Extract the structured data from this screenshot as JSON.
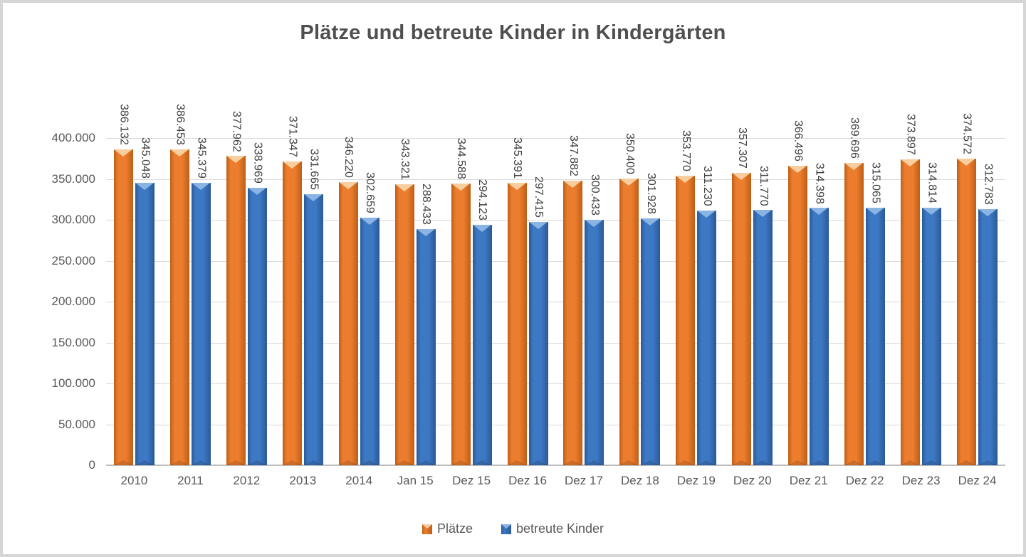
{
  "chart_data": {
    "type": "bar",
    "title": "Plätze und betreute Kinder in Kindergärten",
    "categories": [
      "2010",
      "2011",
      "2012",
      "2013",
      "2014",
      "Jan 15",
      "Dez 15",
      "Dez 16",
      "Dez 17",
      "Dez 18",
      "Dez 19",
      "Dez 20",
      "Dez 21",
      "Dez 22",
      "Dez 23",
      "Dez 24"
    ],
    "series": [
      {
        "name": "Plätze",
        "color": "#ED7D2E",
        "color_dark": "#BD5F16",
        "color_light": "#F8CE9E",
        "values": [
          386132,
          386453,
          377962,
          371347,
          346220,
          343321,
          344588,
          345391,
          347882,
          350400,
          353770,
          357307,
          366496,
          369696,
          373897,
          374572
        ],
        "data_labels": [
          "386.132",
          "386.453",
          "377.962",
          "371.347",
          "346.220",
          "343.321",
          "344.588",
          "345.391",
          "347.882",
          "350.400",
          "353.770",
          "357.307",
          "366.496",
          "369.696",
          "373.897",
          "374.572"
        ]
      },
      {
        "name": "betreute Kinder",
        "color": "#3D78C4",
        "color_dark": "#295A96",
        "color_light": "#8AB4E4",
        "values": [
          345048,
          345379,
          338969,
          331665,
          302659,
          288433,
          294123,
          297415,
          300433,
          301928,
          311230,
          311770,
          314398,
          315065,
          314814,
          312783
        ],
        "data_labels": [
          "345.048",
          "345.379",
          "338.969",
          "331.665",
          "302.659",
          "288.433",
          "294.123",
          "297.415",
          "300.433",
          "301.928",
          "311.230",
          "311.770",
          "314.398",
          "315.065",
          "314.814",
          "312.783"
        ]
      }
    ],
    "y_axis": {
      "min": 0,
      "max": 400000,
      "step": 50000,
      "tick_labels": [
        "0",
        "50.000",
        "100.000",
        "150.000",
        "200.000",
        "250.000",
        "300.000",
        "350.000",
        "400.000"
      ]
    },
    "grid": true,
    "legend_position": "bottom",
    "data_label_style": "rotated-90-outside-end",
    "colors": {
      "gridline": "#d9d9d9",
      "axis_line": "#bfbfbf",
      "title_text": "#4f4f4f",
      "tick_text": "#595959",
      "data_label_text": "#404040",
      "frame_border": "#d6d6d6",
      "background": "#ffffff"
    }
  }
}
